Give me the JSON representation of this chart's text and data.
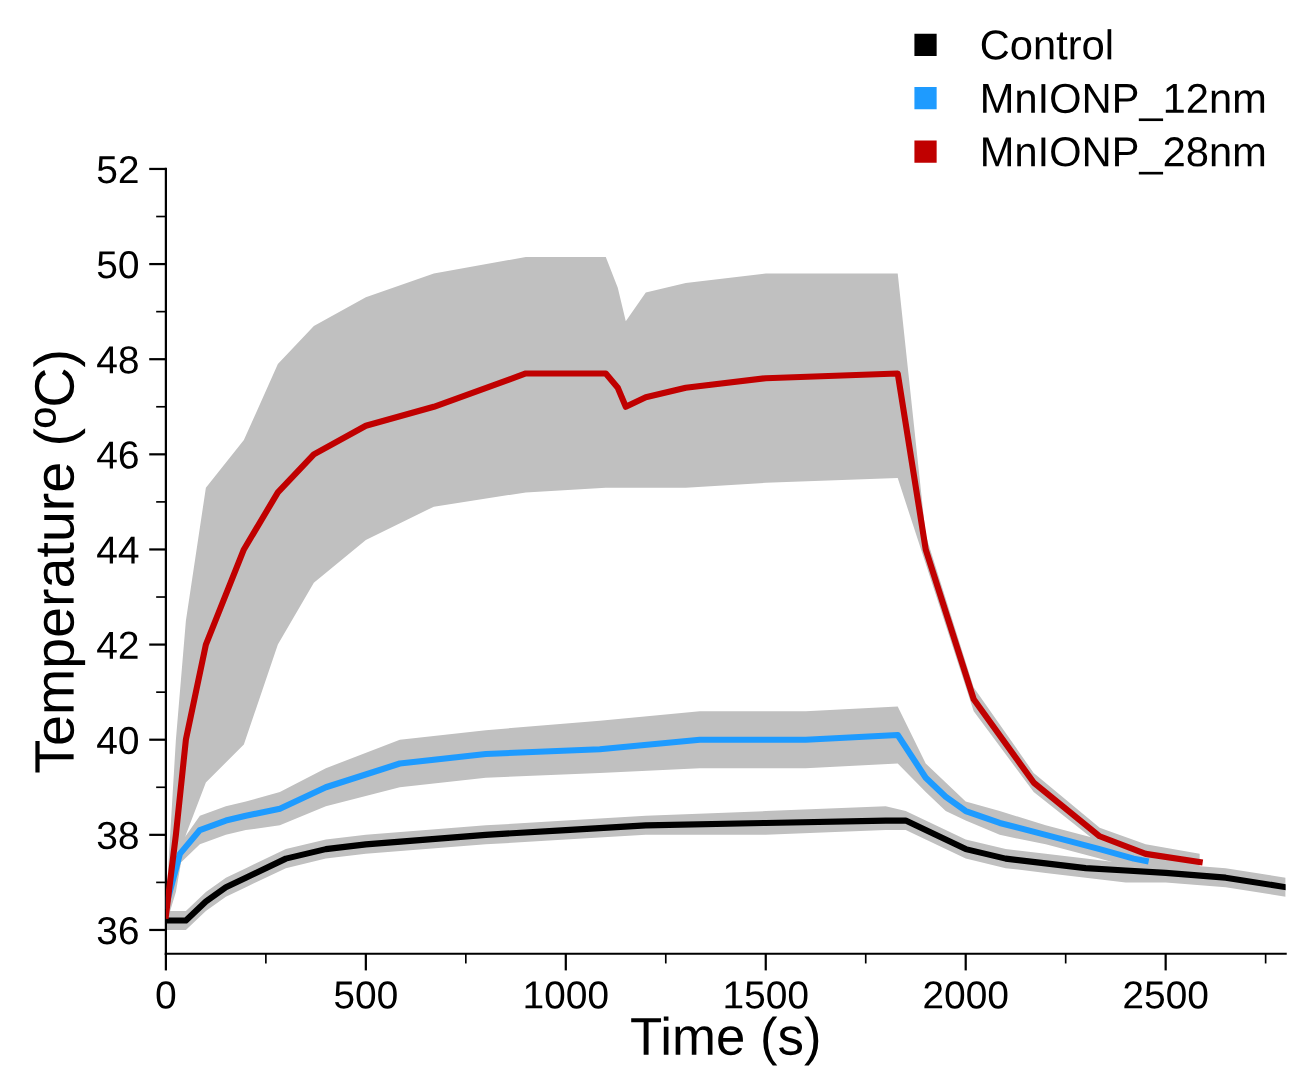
{
  "chart_data": {
    "type": "line",
    "xlabel": "Time (s)",
    "ylabel": "Temperature (ºC)",
    "xlim": [
      0,
      2800
    ],
    "ylim": [
      35.5,
      52
    ],
    "xticks": [
      0,
      500,
      1000,
      1500,
      2000,
      2500
    ],
    "yticks": [
      36,
      38,
      40,
      42,
      44,
      46,
      48,
      50,
      52
    ],
    "grid": false,
    "legend": "top right",
    "series": [
      {
        "name": "Control",
        "color": "#000000",
        "x": [
          0,
          50,
          100,
          150,
          200,
          300,
          400,
          500,
          650,
          800,
          1000,
          1200,
          1500,
          1800,
          1850,
          1900,
          1950,
          2000,
          2100,
          2200,
          2300,
          2400,
          2500,
          2650,
          2800
        ],
        "values": [
          36.2,
          36.2,
          36.6,
          36.9,
          37.1,
          37.5,
          37.7,
          37.8,
          37.9,
          38.0,
          38.1,
          38.2,
          38.25,
          38.3,
          38.3,
          38.1,
          37.9,
          37.7,
          37.5,
          37.4,
          37.3,
          37.25,
          37.2,
          37.1,
          36.9
        ],
        "lower": [
          36.0,
          36.0,
          36.4,
          36.7,
          36.9,
          37.3,
          37.5,
          37.6,
          37.7,
          37.8,
          37.9,
          38.0,
          38.0,
          38.1,
          38.1,
          37.9,
          37.7,
          37.5,
          37.3,
          37.2,
          37.1,
          37.0,
          37.0,
          36.9,
          36.7
        ],
        "upper": [
          36.4,
          36.4,
          36.8,
          37.1,
          37.3,
          37.7,
          37.9,
          38.0,
          38.1,
          38.2,
          38.3,
          38.4,
          38.5,
          38.6,
          38.5,
          38.3,
          38.1,
          37.9,
          37.7,
          37.6,
          37.5,
          37.4,
          37.4,
          37.3,
          37.1
        ]
      },
      {
        "name": "MnIONP_12nm",
        "color": "#1e9bff",
        "x": [
          0,
          35,
          85,
          150,
          200,
          285,
          400,
          585,
          800,
          1085,
          1335,
          1600,
          1830,
          1900,
          1950,
          2000,
          2085,
          2200,
          2335,
          2420,
          2450
        ],
        "values": [
          36.5,
          37.6,
          38.1,
          38.3,
          38.4,
          38.55,
          39.0,
          39.5,
          39.7,
          39.8,
          40.0,
          40.0,
          40.1,
          39.2,
          38.8,
          38.5,
          38.25,
          38.0,
          37.7,
          37.5,
          37.45
        ],
        "lower": [
          36.3,
          37.4,
          37.8,
          38.0,
          38.1,
          38.2,
          38.6,
          39.0,
          39.2,
          39.3,
          39.4,
          39.4,
          39.5,
          38.9,
          38.5,
          38.3,
          38.0,
          37.8,
          37.5,
          37.3,
          37.3
        ],
        "upper": [
          36.7,
          37.8,
          38.4,
          38.6,
          38.7,
          38.9,
          39.4,
          40.0,
          40.2,
          40.4,
          40.6,
          40.6,
          40.7,
          39.5,
          39.1,
          38.7,
          38.5,
          38.2,
          37.9,
          37.7,
          37.6
        ]
      },
      {
        "name": "MnIONP_28nm",
        "color": "#c00000",
        "x": [
          0,
          25,
          50,
          100,
          195,
          280,
          370,
          500,
          670,
          900,
          1100,
          1130,
          1150,
          1200,
          1300,
          1500,
          1830,
          1900,
          2020,
          2170,
          2335,
          2450,
          2585
        ],
        "values": [
          36.3,
          38.0,
          40.0,
          42.0,
          44.0,
          45.2,
          46.0,
          46.6,
          47.0,
          47.7,
          47.7,
          47.4,
          47.0,
          47.2,
          47.4,
          47.6,
          47.7,
          44.0,
          40.85,
          39.1,
          37.97,
          37.6,
          37.43
        ],
        "lower": [
          36.1,
          36.8,
          38.0,
          39.1,
          39.9,
          42.0,
          43.3,
          44.2,
          44.9,
          45.2,
          45.3,
          45.3,
          45.3,
          45.3,
          45.3,
          45.4,
          45.5,
          43.7,
          40.6,
          38.9,
          37.8,
          37.4,
          37.3
        ],
        "upper": [
          36.5,
          40.0,
          42.5,
          45.3,
          46.3,
          47.9,
          48.7,
          49.3,
          49.8,
          50.15,
          50.15,
          49.5,
          48.8,
          49.4,
          49.6,
          49.8,
          49.8,
          44.3,
          41.1,
          39.3,
          38.15,
          37.8,
          37.6
        ]
      }
    ]
  }
}
